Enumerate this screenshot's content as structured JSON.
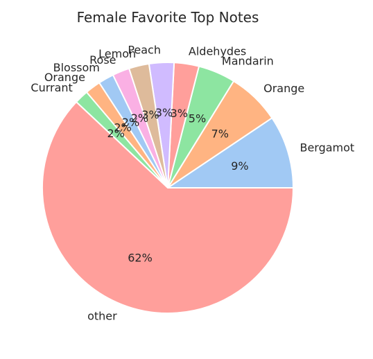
{
  "chart_data": {
    "type": "pie",
    "title": "Female Favorite Top Notes",
    "categories": [
      "Bergamot",
      "Orange",
      "Mandarin",
      "Aldehydes",
      "Peach",
      "Lemon",
      "Rose",
      "Blossom",
      "Orange",
      "Currant",
      "other"
    ],
    "values": [
      9.4,
      6.8,
      4.8,
      3.2,
      3.2,
      2.6,
      2.2,
      2.0,
      2.0,
      1.8,
      62.0
    ],
    "value_labels": [
      "9%",
      "7%",
      "5%",
      "3%",
      "3%",
      "3%",
      "2%",
      "2%",
      "2%",
      "2%",
      "62%"
    ],
    "colors": [
      "#a1c9f4",
      "#ffb482",
      "#8de5a1",
      "#ff9f9b",
      "#d0bbff",
      "#debb9b",
      "#fab0e4",
      "#a1c9f4",
      "#ffb482",
      "#8de5a1",
      "#ff9f9b"
    ],
    "start_angle_deg": 0,
    "direction": "counterclockwise",
    "edge_color": "#ffffff"
  }
}
